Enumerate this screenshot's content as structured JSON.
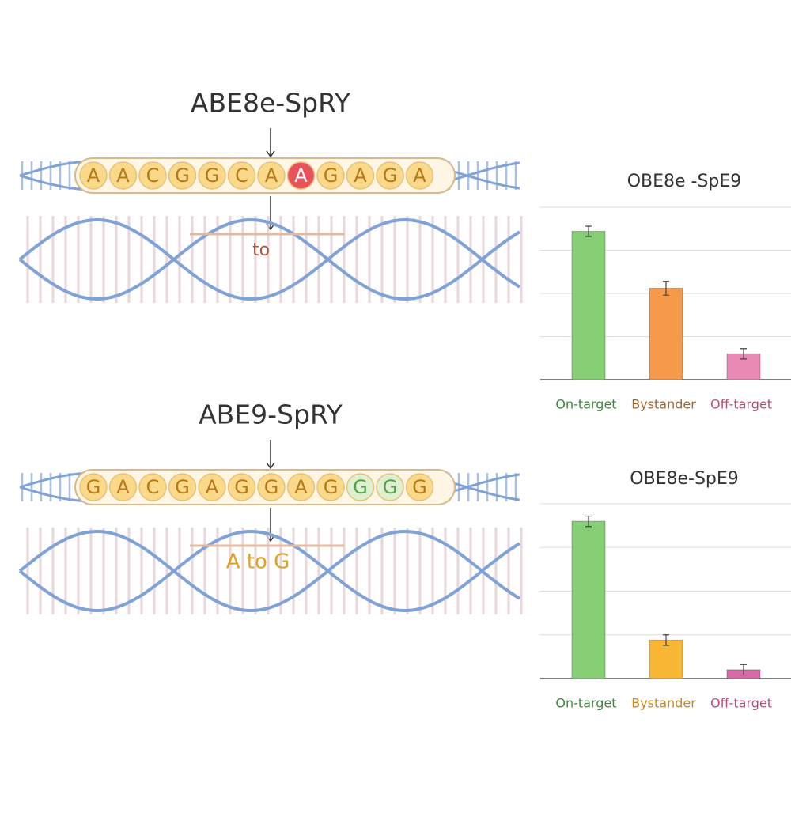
{
  "panels": [
    {
      "title": "ABE8e-SpRY",
      "sequence": [
        "A",
        "A",
        "C",
        "G",
        "G",
        "C",
        "A",
        "A",
        "G",
        "A",
        "G",
        "A"
      ],
      "edit_label": "to"
    },
    {
      "title": "ABE9-SpRY",
      "sequence": [
        "G",
        "A",
        "C",
        "G",
        "A",
        "G",
        "G",
        "A",
        "G",
        "G",
        "G",
        "G"
      ],
      "edit_label": "A to G"
    }
  ],
  "chart_data": [
    {
      "type": "bar",
      "title": "OBE8e -SpE9",
      "categories": [
        "On-target",
        "Bystander",
        "Off-target"
      ],
      "values": [
        86,
        53,
        15
      ],
      "errors": [
        3,
        4,
        3
      ],
      "colors": [
        "#86cf75",
        "#f59a4a",
        "#e98ab5"
      ],
      "label_colors": [
        "#3a8a3a",
        "#a8642a",
        "#c4467a"
      ],
      "ylim": [
        0,
        100
      ],
      "yticks": [
        0,
        25,
        50,
        75,
        100
      ],
      "grid": true
    },
    {
      "type": "bar",
      "title": "OBE8e-SpE9",
      "categories": [
        "On-target",
        "Bystander",
        "Off-target"
      ],
      "values": [
        90,
        22,
        5
      ],
      "errors": [
        3,
        3,
        3
      ],
      "colors": [
        "#86cf75",
        "#f7b733",
        "#d96aa8"
      ],
      "label_colors": [
        "#3a8a3a",
        "#c88a1a",
        "#c4467a"
      ],
      "ylim": [
        0,
        100
      ],
      "yticks": [
        0,
        25,
        50,
        75,
        100
      ],
      "grid": true
    }
  ]
}
